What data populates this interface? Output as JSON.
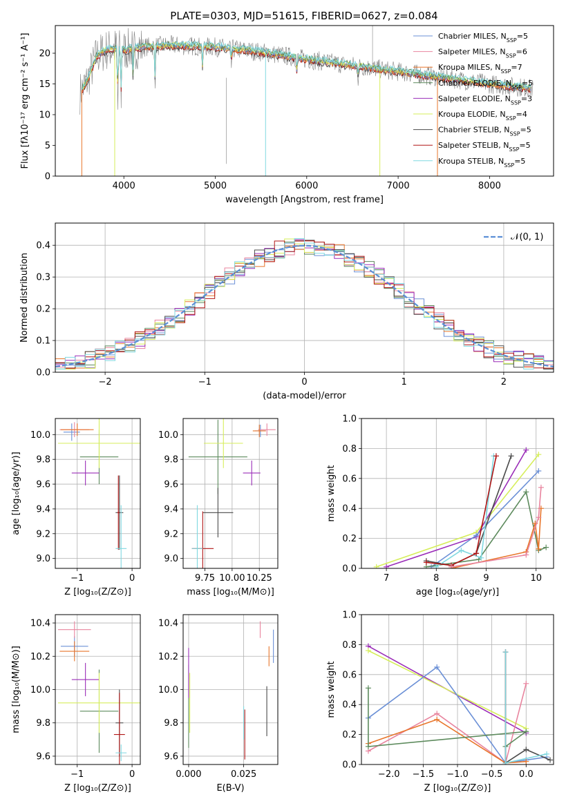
{
  "figure_title": "PLATE=0303, MJD=51615, FIBERID=0627, z=0.084",
  "colors": {
    "Chabrier MILES": "#6a8fd6",
    "Salpeter MILES": "#e8849e",
    "Kroupa MILES": "#e8752a",
    "Chabrier ELODIE": "#5c8a5c",
    "Salpeter ELODIE": "#9a2cb8",
    "Kroupa ELODIE": "#d6ee5a",
    "Chabrier STELIB": "#4a4a4a",
    "Salpeter STELIB": "#b01414",
    "Kroupa STELIB": "#7fd8e0",
    "gaussian": "#5b8fd6"
  },
  "chart_data": [
    {
      "id": "spectrum",
      "type": "line",
      "xlabel": "wavelength [Angstrom, rest frame]",
      "ylabel": "Flux [fλ10⁻¹⁷ erg cm⁻² s⁻¹ A⁻¹]",
      "xlim": [
        3250,
        8700
      ],
      "ylim": [
        0,
        24.5
      ],
      "xticks": [
        4000,
        5000,
        6000,
        7000,
        8000
      ],
      "yticks": [
        0,
        5,
        10,
        15,
        20
      ],
      "grid": false,
      "legend_position": "top-right",
      "legend": [
        {
          "name": "Chabrier MILES",
          "nssp": "5"
        },
        {
          "name": "Salpeter MILES",
          "nssp": "6"
        },
        {
          "name": "Kroupa MILES",
          "nssp": "7"
        },
        {
          "name": "Chabrier ELODIE",
          "nssp": "5"
        },
        {
          "name": "Salpeter ELODIE",
          "nssp": "3"
        },
        {
          "name": "Kroupa ELODIE",
          "nssp": "4"
        },
        {
          "name": "Chabrier STELIB",
          "nssp": "5"
        },
        {
          "name": "Salpeter STELIB",
          "nssp": "5"
        },
        {
          "name": "Kroupa STELIB",
          "nssp": "5"
        }
      ],
      "continuum": [
        [
          3520,
          13.5
        ],
        [
          3600,
          15.5
        ],
        [
          3700,
          19.5
        ],
        [
          3800,
          20.5
        ],
        [
          3900,
          20.8
        ],
        [
          4000,
          20.5
        ],
        [
          4200,
          21.0
        ],
        [
          4500,
          21.3
        ],
        [
          5000,
          21.0
        ],
        [
          5500,
          20.2
        ],
        [
          6000,
          19.0
        ],
        [
          6500,
          18.0
        ],
        [
          7000,
          17.0
        ],
        [
          7500,
          16.0
        ],
        [
          8000,
          15.0
        ],
        [
          8500,
          14.2
        ]
      ]
    },
    {
      "id": "residuals",
      "type": "step",
      "xlabel": "(data-model)/error",
      "ylabel": "Normed distribution",
      "xlim": [
        -2.5,
        2.5
      ],
      "ylim": [
        0,
        0.47
      ],
      "xticks": [
        -2,
        -1,
        0,
        1,
        2
      ],
      "yticks": [
        0.0,
        0.1,
        0.2,
        0.3,
        0.4
      ],
      "grid": true,
      "legend_position": "top-right",
      "gaussian_label": "𝒩(0, 1)"
    },
    {
      "id": "age_Z",
      "type": "errorbar",
      "xlabel": "Z [log₁₀(Z/Z⊙)]",
      "ylabel": "age  [log₁₀(age/yr)]",
      "xlim": [
        -1.4,
        0.15
      ],
      "ylim": [
        8.92,
        10.13
      ],
      "xticks": [
        -1,
        0
      ],
      "yticks": [
        9.0,
        9.2,
        9.4,
        9.6,
        9.8,
        10.0
      ],
      "grid": true,
      "points": [
        {
          "series": "Chabrier MILES",
          "x": -1.1,
          "y": 10.02,
          "xerr": 0.15,
          "yerr": 0.07
        },
        {
          "series": "Salpeter MILES",
          "x": -1.05,
          "y": 10.04,
          "xerr": 0.27,
          "yerr": 0.06
        },
        {
          "series": "Kroupa MILES",
          "x": -1.0,
          "y": 10.04,
          "xerr": 0.3,
          "yerr": 0.05
        },
        {
          "series": "Chabrier ELODIE",
          "x": -0.6,
          "y": 9.82,
          "xerr": 0.35,
          "yerr": 0.22
        },
        {
          "series": "Salpeter ELODIE",
          "x": -0.85,
          "y": 9.69,
          "xerr": 0.25,
          "yerr": 0.1
        },
        {
          "series": "Kroupa ELODIE",
          "x": -0.6,
          "y": 9.93,
          "xerr": 0.75,
          "yerr": 0.2
        },
        {
          "series": "Chabrier STELIB",
          "x": -0.23,
          "y": 9.37,
          "xerr": 0.07,
          "yerr": 0.3
        },
        {
          "series": "Salpeter STELIB",
          "x": -0.25,
          "y": 9.37,
          "xerr": 0.02,
          "yerr": 0.3
        },
        {
          "series": "Kroupa STELIB",
          "x": -0.2,
          "y": 9.08,
          "xerr": 0.1,
          "yerr": 0.35
        }
      ]
    },
    {
      "id": "age_mass",
      "type": "errorbar",
      "xlabel": "mass [log₁₀(M/M⊙)]",
      "ylabel": "",
      "xlim": [
        9.55,
        10.42
      ],
      "ylim": [
        8.92,
        10.13
      ],
      "xticks": [
        9.75,
        10.0,
        10.25
      ],
      "xticklabels": [
        "9.75",
        "10.00",
        "10.25"
      ],
      "yticks": [
        9.0,
        9.2,
        9.4,
        9.6,
        9.8,
        10.0
      ],
      "grid": true,
      "points": [
        {
          "series": "Chabrier MILES",
          "x": 10.26,
          "y": 10.03,
          "xerr": 0.05,
          "yerr": 0.05
        },
        {
          "series": "Salpeter MILES",
          "x": 10.32,
          "y": 10.04,
          "xerr": 0.08,
          "yerr": 0.05
        },
        {
          "series": "Kroupa MILES",
          "x": 10.25,
          "y": 10.03,
          "xerr": 0.06,
          "yerr": 0.05
        },
        {
          "series": "Chabrier ELODIE",
          "x": 9.87,
          "y": 9.82,
          "xerr": 0.27,
          "yerr": 0.3
        },
        {
          "series": "Salpeter ELODIE",
          "x": 10.18,
          "y": 9.69,
          "xerr": 0.08,
          "yerr": 0.1
        },
        {
          "series": "Kroupa ELODIE",
          "x": 9.92,
          "y": 9.93,
          "xerr": 0.18,
          "yerr": 0.2
        },
        {
          "series": "Chabrier STELIB",
          "x": 9.87,
          "y": 9.37,
          "xerr": 0.14,
          "yerr": 0.2
        },
        {
          "series": "Salpeter STELIB",
          "x": 9.73,
          "y": 9.08,
          "xerr": 0.1,
          "yerr": 0.3
        },
        {
          "series": "Kroupa STELIB",
          "x": 9.68,
          "y": 9.08,
          "xerr": 0.05,
          "yerr": 0.35
        }
      ]
    },
    {
      "id": "weight_age",
      "type": "line",
      "xlabel": "age  [log₁₀(age/yr)]",
      "ylabel": "mass weight",
      "xlim": [
        6.5,
        10.35
      ],
      "ylim": [
        0,
        1.0
      ],
      "xticks": [
        7,
        8,
        9,
        10
      ],
      "yticks": [
        0.0,
        0.2,
        0.4,
        0.6,
        0.8,
        1.0
      ],
      "grid": true,
      "series": [
        {
          "name": "Kroupa ELODIE",
          "x": [
            6.8,
            8.8,
            10.05
          ],
          "y": [
            0.01,
            0.24,
            0.76
          ]
        },
        {
          "name": "Salpeter ELODIE",
          "x": [
            7.0,
            8.8,
            9.8
          ],
          "y": [
            0.01,
            0.21,
            0.79
          ]
        },
        {
          "name": "Chabrier MILES",
          "x": [
            7.9,
            8.8,
            10.05
          ],
          "y": [
            0.01,
            0.22,
            0.65
          ]
        },
        {
          "name": "Chabrier ELODIE",
          "x": [
            7.8,
            8.85,
            9.8,
            10.05,
            10.2
          ],
          "y": [
            0.01,
            0.06,
            0.51,
            0.12,
            0.14
          ]
        },
        {
          "name": "Chabrier STELIB",
          "x": [
            7.8,
            8.3,
            8.8,
            9.5
          ],
          "y": [
            0.05,
            0.02,
            0.1,
            0.75
          ]
        },
        {
          "name": "Kroupa STELIB",
          "x": [
            8.0,
            8.5,
            8.9,
            9.15
          ],
          "y": [
            0.01,
            0.12,
            0.07,
            0.75
          ]
        },
        {
          "name": "Salpeter STELIB",
          "x": [
            7.8,
            8.3,
            8.8,
            9.2
          ],
          "y": [
            0.04,
            0.02,
            0.1,
            0.75
          ]
        },
        {
          "name": "Kroupa MILES",
          "x": [
            8.3,
            9.8,
            9.98,
            10.05,
            10.1
          ],
          "y": [
            0.0,
            0.11,
            0.3,
            0.13,
            0.4
          ]
        },
        {
          "name": "Salpeter MILES",
          "x": [
            8.3,
            9.8,
            10.05,
            10.1
          ],
          "y": [
            0.01,
            0.09,
            0.34,
            0.54
          ]
        }
      ]
    },
    {
      "id": "mass_Z",
      "type": "errorbar",
      "xlabel": "Z [log₁₀(Z/Z⊙)]",
      "ylabel": "mass [log₁₀(M/M⊙)]",
      "xlim": [
        -1.4,
        0.15
      ],
      "ylim": [
        9.55,
        10.45
      ],
      "xticks": [
        -1,
        0
      ],
      "yticks": [
        9.6,
        9.8,
        10.0,
        10.2,
        10.4
      ],
      "grid": true,
      "points": [
        {
          "series": "Chabrier MILES",
          "x": -1.05,
          "y": 10.26,
          "xerr": 0.25,
          "yerr": 0.06
        },
        {
          "series": "Salpeter MILES",
          "x": -1.05,
          "y": 10.36,
          "xerr": 0.3,
          "yerr": 0.05
        },
        {
          "series": "Kroupa MILES",
          "x": -1.05,
          "y": 10.23,
          "xerr": 0.27,
          "yerr": 0.06
        },
        {
          "series": "Chabrier ELODIE",
          "x": -0.6,
          "y": 9.87,
          "xerr": 0.35,
          "yerr": 0.25
        },
        {
          "series": "Salpeter ELODIE",
          "x": -0.85,
          "y": 10.06,
          "xerr": 0.25,
          "yerr": 0.1
        },
        {
          "series": "Kroupa ELODIE",
          "x": -0.6,
          "y": 9.92,
          "xerr": 0.75,
          "yerr": 0.18
        },
        {
          "series": "Chabrier STELIB",
          "x": -0.23,
          "y": 9.8,
          "xerr": 0.07,
          "yerr": 0.2
        },
        {
          "series": "Salpeter STELIB",
          "x": -0.23,
          "y": 9.73,
          "xerr": 0.1,
          "yerr": 0.25
        },
        {
          "series": "Kroupa STELIB",
          "x": -0.2,
          "y": 9.62,
          "xerr": 0.1,
          "yerr": 0.05
        }
      ]
    },
    {
      "id": "mass_EBV",
      "type": "errorbar",
      "xlabel": "E(B-V)",
      "ylabel": "",
      "xlim": [
        -0.0025,
        0.0405
      ],
      "ylim": [
        9.55,
        10.45
      ],
      "xticks": [
        0.0,
        0.025
      ],
      "xticklabels": [
        "0.000",
        "0.025"
      ],
      "yticks": [
        9.6,
        9.8,
        10.0,
        10.2,
        10.4
      ],
      "grid": true,
      "points": [
        {
          "series": "Chabrier MILES",
          "x": 0.0385,
          "y": 10.26,
          "xerr": 0,
          "yerr": 0.1
        },
        {
          "series": "Salpeter MILES",
          "x": 0.0325,
          "y": 10.36,
          "xerr": 0,
          "yerr": 0.05
        },
        {
          "series": "Kroupa MILES",
          "x": 0.0365,
          "y": 10.2,
          "xerr": 0,
          "yerr": 0.06
        },
        {
          "series": "Chabrier ELODIE",
          "x": 0.0,
          "y": 9.9,
          "xerr": 0,
          "yerr": 0.25
        },
        {
          "series": "Salpeter ELODIE",
          "x": 0.0,
          "y": 10.1,
          "xerr": 0,
          "yerr": 0.15
        },
        {
          "series": "Kroupa ELODIE",
          "x": 0.0005,
          "y": 9.92,
          "xerr": 0,
          "yerr": 0.18
        },
        {
          "series": "Chabrier STELIB",
          "x": 0.0355,
          "y": 9.87,
          "xerr": 0,
          "yerr": 0.15
        },
        {
          "series": "Salpeter STELIB",
          "x": 0.0255,
          "y": 9.73,
          "xerr": 0,
          "yerr": 0.15
        },
        {
          "series": "Kroupa STELIB",
          "x": 0.025,
          "y": 9.8,
          "xerr": 0,
          "yerr": 0.1
        }
      ]
    },
    {
      "id": "weight_Z",
      "type": "line",
      "xlabel": "Z [log₁₀(Z/Z⊙)]",
      "ylabel": "mass weight",
      "xlim": [
        -2.4,
        0.4
      ],
      "ylim": [
        0,
        1.0
      ],
      "xticks": [
        -2.0,
        -1.5,
        -1.0,
        -0.5,
        0.0
      ],
      "xticklabels": [
        "−2.0",
        "−1.5",
        "−1.0",
        "−0.5",
        "0.0"
      ],
      "yticks": [
        0.0,
        0.2,
        0.4,
        0.6,
        0.8,
        1.0
      ],
      "grid": true,
      "series": [
        {
          "name": "Salpeter ELODIE",
          "x": [
            -2.3,
            0.0
          ],
          "y": [
            0.79,
            0.21
          ]
        },
        {
          "name": "Kroupa ELODIE",
          "x": [
            -2.3,
            0.0
          ],
          "y": [
            0.76,
            0.24
          ]
        },
        {
          "name": "Chabrier MILES",
          "x": [
            -2.3,
            -1.3,
            -0.3,
            0.0,
            0.3
          ],
          "y": [
            0.31,
            0.65,
            0.01,
            0.03,
            0.05
          ]
        },
        {
          "name": "Salpeter MILES",
          "x": [
            -2.3,
            -1.3,
            -0.3,
            0.0
          ],
          "y": [
            0.09,
            0.34,
            0.01,
            0.54
          ]
        },
        {
          "name": "Kroupa MILES",
          "x": [
            -2.3,
            -1.3,
            -0.3,
            0.0
          ],
          "y": [
            0.14,
            0.3,
            0.01,
            0.02
          ]
        },
        {
          "name": "Chabrier ELODIE",
          "x": [
            -2.3,
            -2.3,
            0.0,
            -0.3,
            -0.3
          ],
          "y": [
            0.51,
            0.12,
            0.22,
            0.12,
            0.01
          ]
        },
        {
          "name": "Chabrier STELIB",
          "x": [
            -0.3,
            -0.3,
            0.0,
            0.35
          ],
          "y": [
            0.75,
            0.01,
            0.1,
            0.03
          ]
        },
        {
          "name": "Salpeter STELIB",
          "x": [
            -0.3,
            -0.3
          ],
          "y": [
            0.75,
            0.01
          ]
        },
        {
          "name": "Kroupa STELIB",
          "x": [
            -0.3,
            -0.3,
            0.3
          ],
          "y": [
            0.75,
            0.01,
            0.07
          ]
        }
      ]
    }
  ]
}
